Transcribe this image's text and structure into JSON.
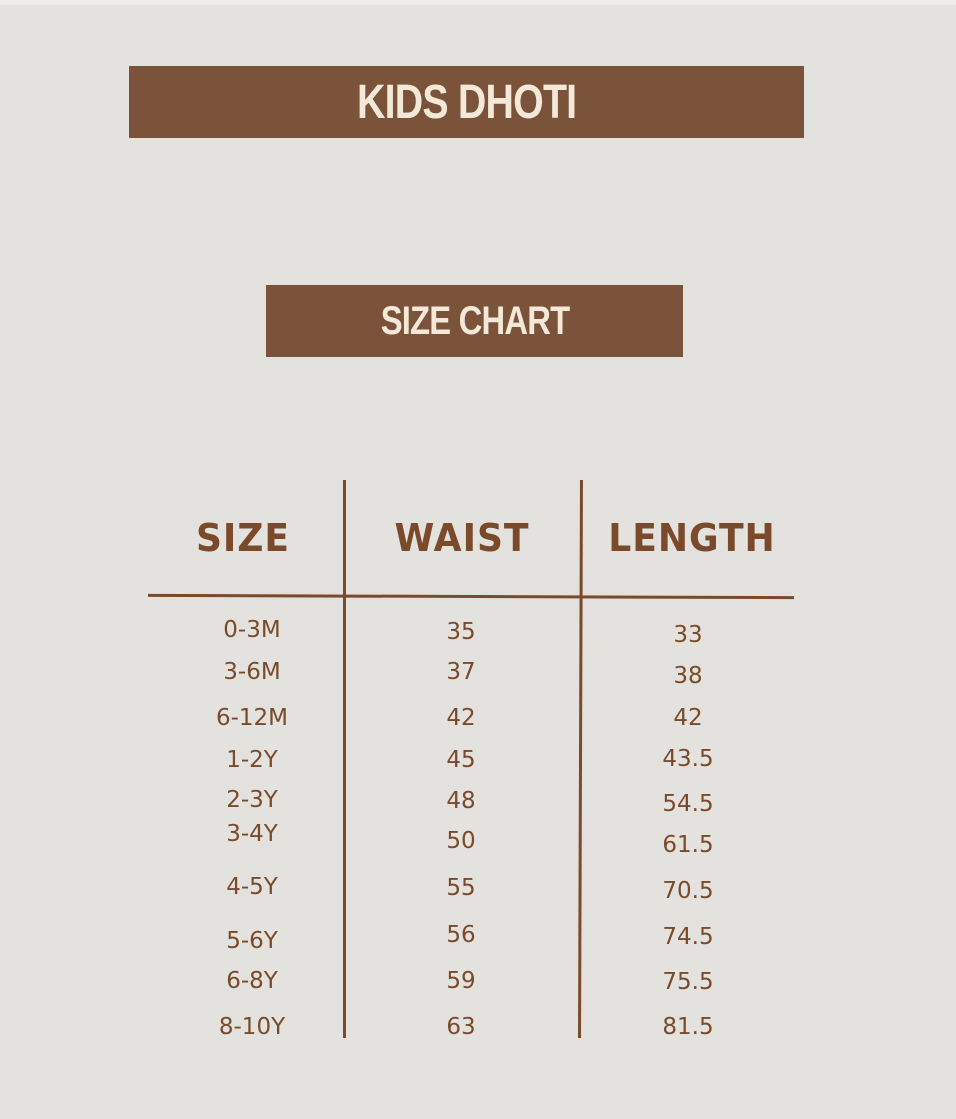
{
  "title": "KIDS DHOTI",
  "subtitle": "SIZE CHART",
  "colors": {
    "accent": "#7a533a",
    "text": "#7a4a2a",
    "background": "#e4e2df",
    "bar_text": "#f4e8d8"
  },
  "table": {
    "headers": [
      "SIZE",
      "WAIST",
      "LENGTH"
    ],
    "rows": [
      [
        "0-3M",
        "35",
        "33"
      ],
      [
        "3-6M",
        "37",
        "38"
      ],
      [
        "6-12M",
        "42",
        "42"
      ],
      [
        "1-2Y",
        "45",
        "43.5"
      ],
      [
        "2-3Y",
        "48",
        "54.5"
      ],
      [
        "3-4Y",
        "50",
        "61.5"
      ],
      [
        "4-5Y",
        "55",
        "70.5"
      ],
      [
        "5-6Y",
        "56",
        "74.5"
      ],
      [
        "6-8Y",
        "59",
        "75.5"
      ],
      [
        "8-10Y",
        "63",
        "81.5"
      ]
    ]
  }
}
